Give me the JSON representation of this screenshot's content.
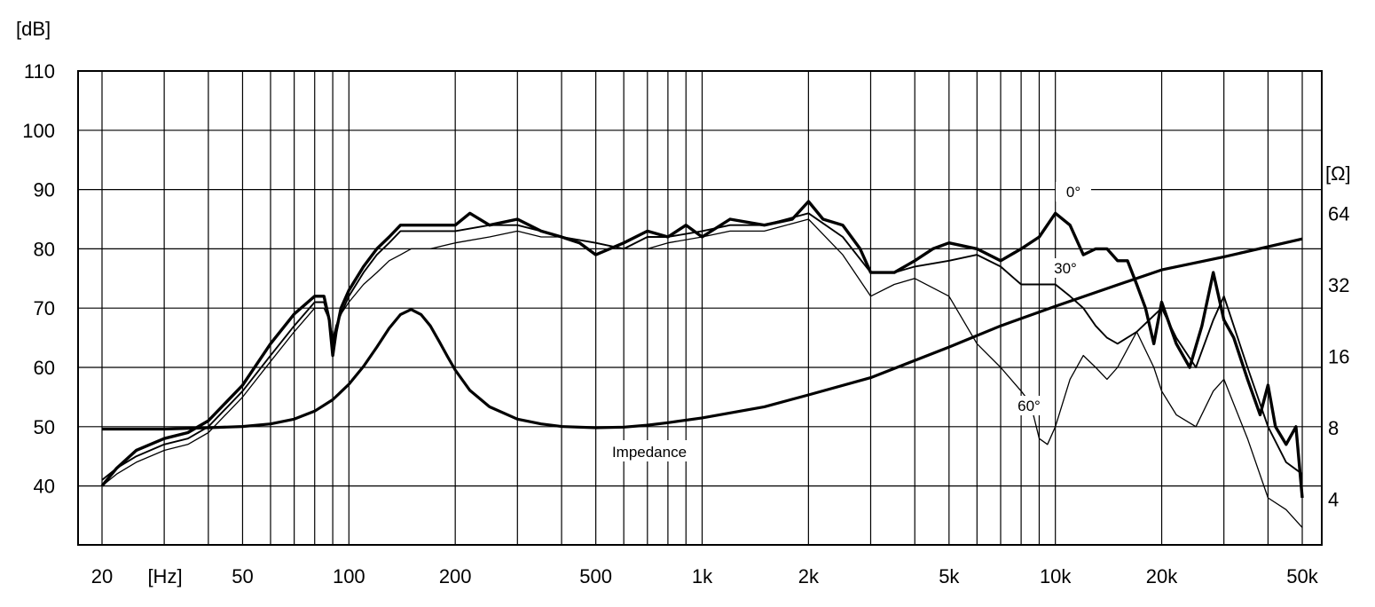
{
  "chart_data": {
    "type": "line",
    "left_axis_unit": "[dB]",
    "right_axis_unit": "[Ω]",
    "x_unit_label": "[Hz]",
    "x_scale": "log",
    "x_range_hz": [
      20,
      50000
    ],
    "y_left_range_db": [
      30,
      110
    ],
    "y_right_range_ohm": [
      2,
      128
    ],
    "y_right_scale": "log2",
    "grid": true,
    "x_tick_labels": [
      {
        "hz": 20,
        "label": "20"
      },
      {
        "hz": 50,
        "label": "50"
      },
      {
        "hz": 100,
        "label": "100"
      },
      {
        "hz": 200,
        "label": "200"
      },
      {
        "hz": 500,
        "label": "500"
      },
      {
        "hz": 1000,
        "label": "1k"
      },
      {
        "hz": 2000,
        "label": "2k"
      },
      {
        "hz": 5000,
        "label": "5k"
      },
      {
        "hz": 10000,
        "label": "10k"
      },
      {
        "hz": 20000,
        "label": "20k"
      },
      {
        "hz": 50000,
        "label": "50k"
      }
    ],
    "y_left_ticks": [
      {
        "db": 110,
        "label": "110"
      },
      {
        "db": 100,
        "label": "100"
      },
      {
        "db": 90,
        "label": "90"
      },
      {
        "db": 80,
        "label": "80"
      },
      {
        "db": 70,
        "label": "70"
      },
      {
        "db": 60,
        "label": "60"
      },
      {
        "db": 50,
        "label": "50"
      },
      {
        "db": 40,
        "label": "40"
      }
    ],
    "y_right_ticks": [
      {
        "ohm": 64,
        "label": "64"
      },
      {
        "ohm": 32,
        "label": "32"
      },
      {
        "ohm": 16,
        "label": "16"
      },
      {
        "ohm": 8,
        "label": "8"
      },
      {
        "ohm": 4,
        "label": "4"
      }
    ],
    "series": [
      {
        "name": "0°",
        "axis": "left",
        "x": [
          20,
          22,
          25,
          30,
          35,
          40,
          50,
          60,
          70,
          80,
          85,
          88,
          90,
          92,
          95,
          100,
          110,
          120,
          130,
          140,
          150,
          170,
          200,
          220,
          250,
          300,
          350,
          400,
          450,
          500,
          600,
          700,
          800,
          900,
          1000,
          1200,
          1500,
          1800,
          2000,
          2200,
          2500,
          2800,
          3000,
          3500,
          4000,
          4500,
          5000,
          6000,
          7000,
          8000,
          9000,
          10000,
          11000,
          12000,
          13000,
          14000,
          15000,
          16000,
          17000,
          18000,
          19000,
          20000,
          22000,
          24000,
          26000,
          28000,
          30000,
          32000,
          35000,
          38000,
          40000,
          42000,
          45000,
          48000,
          50000
        ],
        "y": [
          40,
          43,
          46,
          48,
          49,
          51,
          57,
          64,
          69,
          72,
          72,
          68,
          62,
          66,
          70,
          73,
          77,
          80,
          82,
          84,
          84,
          84,
          84,
          86,
          84,
          85,
          83,
          82,
          81,
          79,
          81,
          83,
          82,
          84,
          82,
          85,
          84,
          85,
          88,
          85,
          84,
          80,
          76,
          76,
          78,
          80,
          81,
          80,
          78,
          80,
          82,
          86,
          84,
          79,
          80,
          80,
          78,
          78,
          74,
          70,
          64,
          71,
          64,
          60,
          67,
          76,
          68,
          65,
          58,
          52,
          57,
          50,
          47,
          50,
          38
        ]
      },
      {
        "name": "30°",
        "axis": "left",
        "x": [
          20,
          22,
          25,
          30,
          35,
          40,
          50,
          60,
          70,
          80,
          85,
          88,
          90,
          92,
          95,
          100,
          110,
          120,
          130,
          140,
          150,
          170,
          200,
          250,
          300,
          350,
          400,
          500,
          600,
          700,
          800,
          1000,
          1200,
          1500,
          2000,
          2500,
          3000,
          3500,
          4000,
          5000,
          6000,
          7000,
          8000,
          9000,
          10000,
          11000,
          12000,
          13000,
          14000,
          15000,
          17000,
          20000,
          22000,
          25000,
          28000,
          30000,
          35000,
          40000,
          45000,
          50000
        ],
        "y": [
          41,
          43,
          45,
          47,
          48,
          50,
          56,
          62,
          67,
          71,
          71,
          68,
          64,
          67,
          69,
          72,
          76,
          79,
          81,
          83,
          83,
          83,
          83,
          84,
          84,
          83,
          82,
          81,
          80,
          82,
          82,
          83,
          84,
          84,
          86,
          82,
          76,
          76,
          77,
          78,
          79,
          77,
          74,
          74,
          74,
          72,
          70,
          67,
          65,
          64,
          66,
          70,
          65,
          60,
          68,
          72,
          60,
          50,
          44,
          42
        ]
      },
      {
        "name": "60°",
        "axis": "left",
        "x": [
          20,
          22,
          25,
          30,
          35,
          40,
          50,
          60,
          70,
          80,
          85,
          88,
          90,
          92,
          95,
          100,
          110,
          120,
          130,
          140,
          150,
          170,
          200,
          250,
          300,
          350,
          400,
          500,
          600,
          700,
          800,
          1000,
          1200,
          1500,
          2000,
          2500,
          3000,
          3500,
          4000,
          5000,
          6000,
          7000,
          8000,
          8500,
          9000,
          9500,
          10000,
          11000,
          12000,
          13000,
          14000,
          15000,
          17000,
          19000,
          20000,
          22000,
          25000,
          28000,
          30000,
          35000,
          40000,
          45000,
          50000
        ],
        "y": [
          40,
          42,
          44,
          46,
          47,
          49,
          55,
          61,
          66,
          70,
          70,
          68,
          65,
          67,
          69,
          71,
          74,
          76,
          78,
          79,
          80,
          80,
          81,
          82,
          83,
          82,
          82,
          81,
          80,
          80,
          81,
          82,
          83,
          83,
          85,
          79,
          72,
          74,
          75,
          72,
          64,
          60,
          56,
          54,
          48,
          47,
          50,
          58,
          62,
          60,
          58,
          60,
          66,
          60,
          56,
          52,
          50,
          56,
          58,
          48,
          38,
          36,
          33
        ]
      },
      {
        "name": "Impedance",
        "axis": "right",
        "x": [
          20,
          30,
          40,
          50,
          60,
          70,
          80,
          90,
          100,
          110,
          120,
          130,
          140,
          150,
          160,
          170,
          180,
          190,
          200,
          220,
          250,
          300,
          350,
          400,
          500,
          600,
          700,
          800,
          1000,
          1500,
          2000,
          3000,
          5000,
          7000,
          10000,
          15000,
          20000,
          30000,
          50000
        ],
        "y": [
          7.9,
          7.9,
          8,
          8.1,
          8.3,
          8.7,
          9.4,
          10.5,
          12.2,
          14.5,
          17.5,
          21,
          24,
          25.2,
          24,
          21.5,
          18.5,
          16,
          14,
          11.5,
          9.8,
          8.7,
          8.3,
          8.1,
          8,
          8.05,
          8.2,
          8.4,
          8.8,
          9.8,
          11,
          13,
          17.5,
          21.5,
          26,
          32,
          37,
          42,
          50
        ]
      }
    ],
    "annotations": [
      {
        "text": "0°",
        "near_hz": 10000,
        "near_db": 90
      },
      {
        "text": "30°",
        "near_hz": 10000,
        "near_db": 77
      },
      {
        "text": "60°",
        "near_hz": 9000,
        "near_db": 53
      },
      {
        "text": "Impedance",
        "near_hz": 700,
        "near_db": 46
      }
    ]
  }
}
